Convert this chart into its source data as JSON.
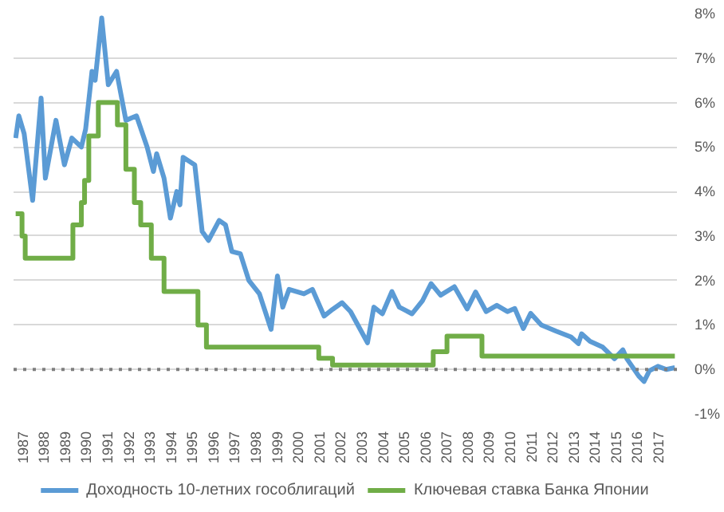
{
  "chart_data": {
    "type": "line",
    "xlim": [
      1986.6,
      2017.9
    ],
    "xticks": [
      {
        "value": 1987,
        "label": "1987"
      },
      {
        "value": 1988,
        "label": "1988"
      },
      {
        "value": 1989,
        "label": "1989"
      },
      {
        "value": 1990,
        "label": "1990"
      },
      {
        "value": 1991,
        "label": "1991"
      },
      {
        "value": 1992,
        "label": "1992"
      },
      {
        "value": 1993,
        "label": "1993"
      },
      {
        "value": 1994,
        "label": "1994"
      },
      {
        "value": 1995,
        "label": "1995"
      },
      {
        "value": 1996,
        "label": "1996"
      },
      {
        "value": 1997,
        "label": "1997"
      },
      {
        "value": 1998,
        "label": "1998"
      },
      {
        "value": 1999,
        "label": "1999"
      },
      {
        "value": 2000,
        "label": "2000"
      },
      {
        "value": 2001,
        "label": "2001"
      },
      {
        "value": 2002,
        "label": "2002"
      },
      {
        "value": 2003,
        "label": "2003"
      },
      {
        "value": 2004,
        "label": "2004"
      },
      {
        "value": 2005,
        "label": "2005"
      },
      {
        "value": 2006,
        "label": "2006"
      },
      {
        "value": 2007,
        "label": "2007"
      },
      {
        "value": 2008,
        "label": "2008"
      },
      {
        "value": 2009,
        "label": "2009"
      },
      {
        "value": 2010,
        "label": "2010"
      },
      {
        "value": 2011,
        "label": "2011"
      },
      {
        "value": 2012,
        "label": "2012"
      },
      {
        "value": 2013,
        "label": "2013"
      },
      {
        "value": 2014,
        "label": "2014"
      },
      {
        "value": 2015,
        "label": "2015"
      },
      {
        "value": 2016,
        "label": "2016"
      },
      {
        "value": 2017,
        "label": "2017"
      }
    ],
    "ylim": [
      -1,
      8
    ],
    "yticks": [
      {
        "value": -1,
        "label": "-1%"
      },
      {
        "value": 0,
        "label": "0%"
      },
      {
        "value": 1,
        "label": "1%"
      },
      {
        "value": 2,
        "label": "2%"
      },
      {
        "value": 3,
        "label": "3%"
      },
      {
        "value": 4,
        "label": "4%"
      },
      {
        "value": 5,
        "label": "5%"
      },
      {
        "value": 6,
        "label": "6%"
      },
      {
        "value": 7,
        "label": "7%"
      },
      {
        "value": 8,
        "label": "8%"
      }
    ],
    "grid": "y",
    "legend": "bottom",
    "ref_lines": [
      {
        "axis": "y",
        "value": 0,
        "color": "#7f7f7f",
        "line_style": "dotted"
      }
    ],
    "series": [
      {
        "name": "Доходность 10-летних гособлигаций",
        "color": "#5b9bd5",
        "x": [
          1986.7,
          1986.85,
          1987.1,
          1987.5,
          1987.9,
          1988.1,
          1988.6,
          1989.0,
          1989.35,
          1989.8,
          1990.0,
          1990.3,
          1990.45,
          1990.76,
          1991.07,
          1991.46,
          1991.9,
          1992.4,
          1992.9,
          1993.2,
          1993.35,
          1993.7,
          1994.0,
          1994.3,
          1994.45,
          1994.6,
          1995.15,
          1995.5,
          1995.8,
          1996.3,
          1996.6,
          1996.9,
          1997.3,
          1997.7,
          1998.2,
          1998.75,
          1999.05,
          1999.3,
          1999.6,
          2000.3,
          2000.7,
          2001.25,
          2001.65,
          2002.1,
          2002.5,
          2003.3,
          2003.6,
          2004.0,
          2004.45,
          2004.8,
          2005.4,
          2005.9,
          2006.3,
          2006.75,
          2007.4,
          2008.0,
          2008.4,
          2008.9,
          2009.4,
          2009.9,
          2010.25,
          2010.65,
          2011.0,
          2011.5,
          2012.2,
          2012.9,
          2013.25,
          2013.4,
          2013.8,
          2014.4,
          2014.95,
          2015.35,
          2015.55,
          2016.1,
          2016.35,
          2016.6,
          2017.0,
          2017.4,
          2017.8
        ],
        "values": [
          5.2,
          5.7,
          5.3,
          3.8,
          6.1,
          4.3,
          5.6,
          4.6,
          5.2,
          5.0,
          5.4,
          6.7,
          6.5,
          7.9,
          6.4,
          6.7,
          5.6,
          5.7,
          5.0,
          4.45,
          4.85,
          4.3,
          3.4,
          4.0,
          3.7,
          4.77,
          4.6,
          3.1,
          2.9,
          3.35,
          3.25,
          2.65,
          2.6,
          2.0,
          1.7,
          0.9,
          2.1,
          1.4,
          1.8,
          1.7,
          1.8,
          1.2,
          1.35,
          1.5,
          1.3,
          0.6,
          1.4,
          1.25,
          1.75,
          1.4,
          1.25,
          1.55,
          1.93,
          1.67,
          1.86,
          1.36,
          1.74,
          1.3,
          1.44,
          1.3,
          1.37,
          0.92,
          1.26,
          1.0,
          0.86,
          0.73,
          0.58,
          0.8,
          0.63,
          0.5,
          0.24,
          0.44,
          0.23,
          -0.15,
          -0.27,
          -0.03,
          0.07,
          0.0,
          0.04
        ]
      },
      {
        "name": "Ключевая ставка Банка Японии",
        "color": "#70ad47",
        "type": "step",
        "x": [
          1986.7,
          1987.0,
          1987.15,
          1989.4,
          1989.8,
          1989.95,
          1990.15,
          1990.6,
          1991.5,
          1991.9,
          1992.3,
          1992.6,
          1993.1,
          1993.7,
          1995.3,
          1995.7,
          2001.0,
          2001.65,
          2006.4,
          2007.05,
          2008.7,
          2017.8
        ],
        "values": [
          3.5,
          3.0,
          2.5,
          3.25,
          3.75,
          4.25,
          5.25,
          6.0,
          5.5,
          4.5,
          3.75,
          3.25,
          2.5,
          1.75,
          1.0,
          0.5,
          0.25,
          0.1,
          0.4,
          0.75,
          0.3,
          0.3
        ]
      }
    ]
  }
}
